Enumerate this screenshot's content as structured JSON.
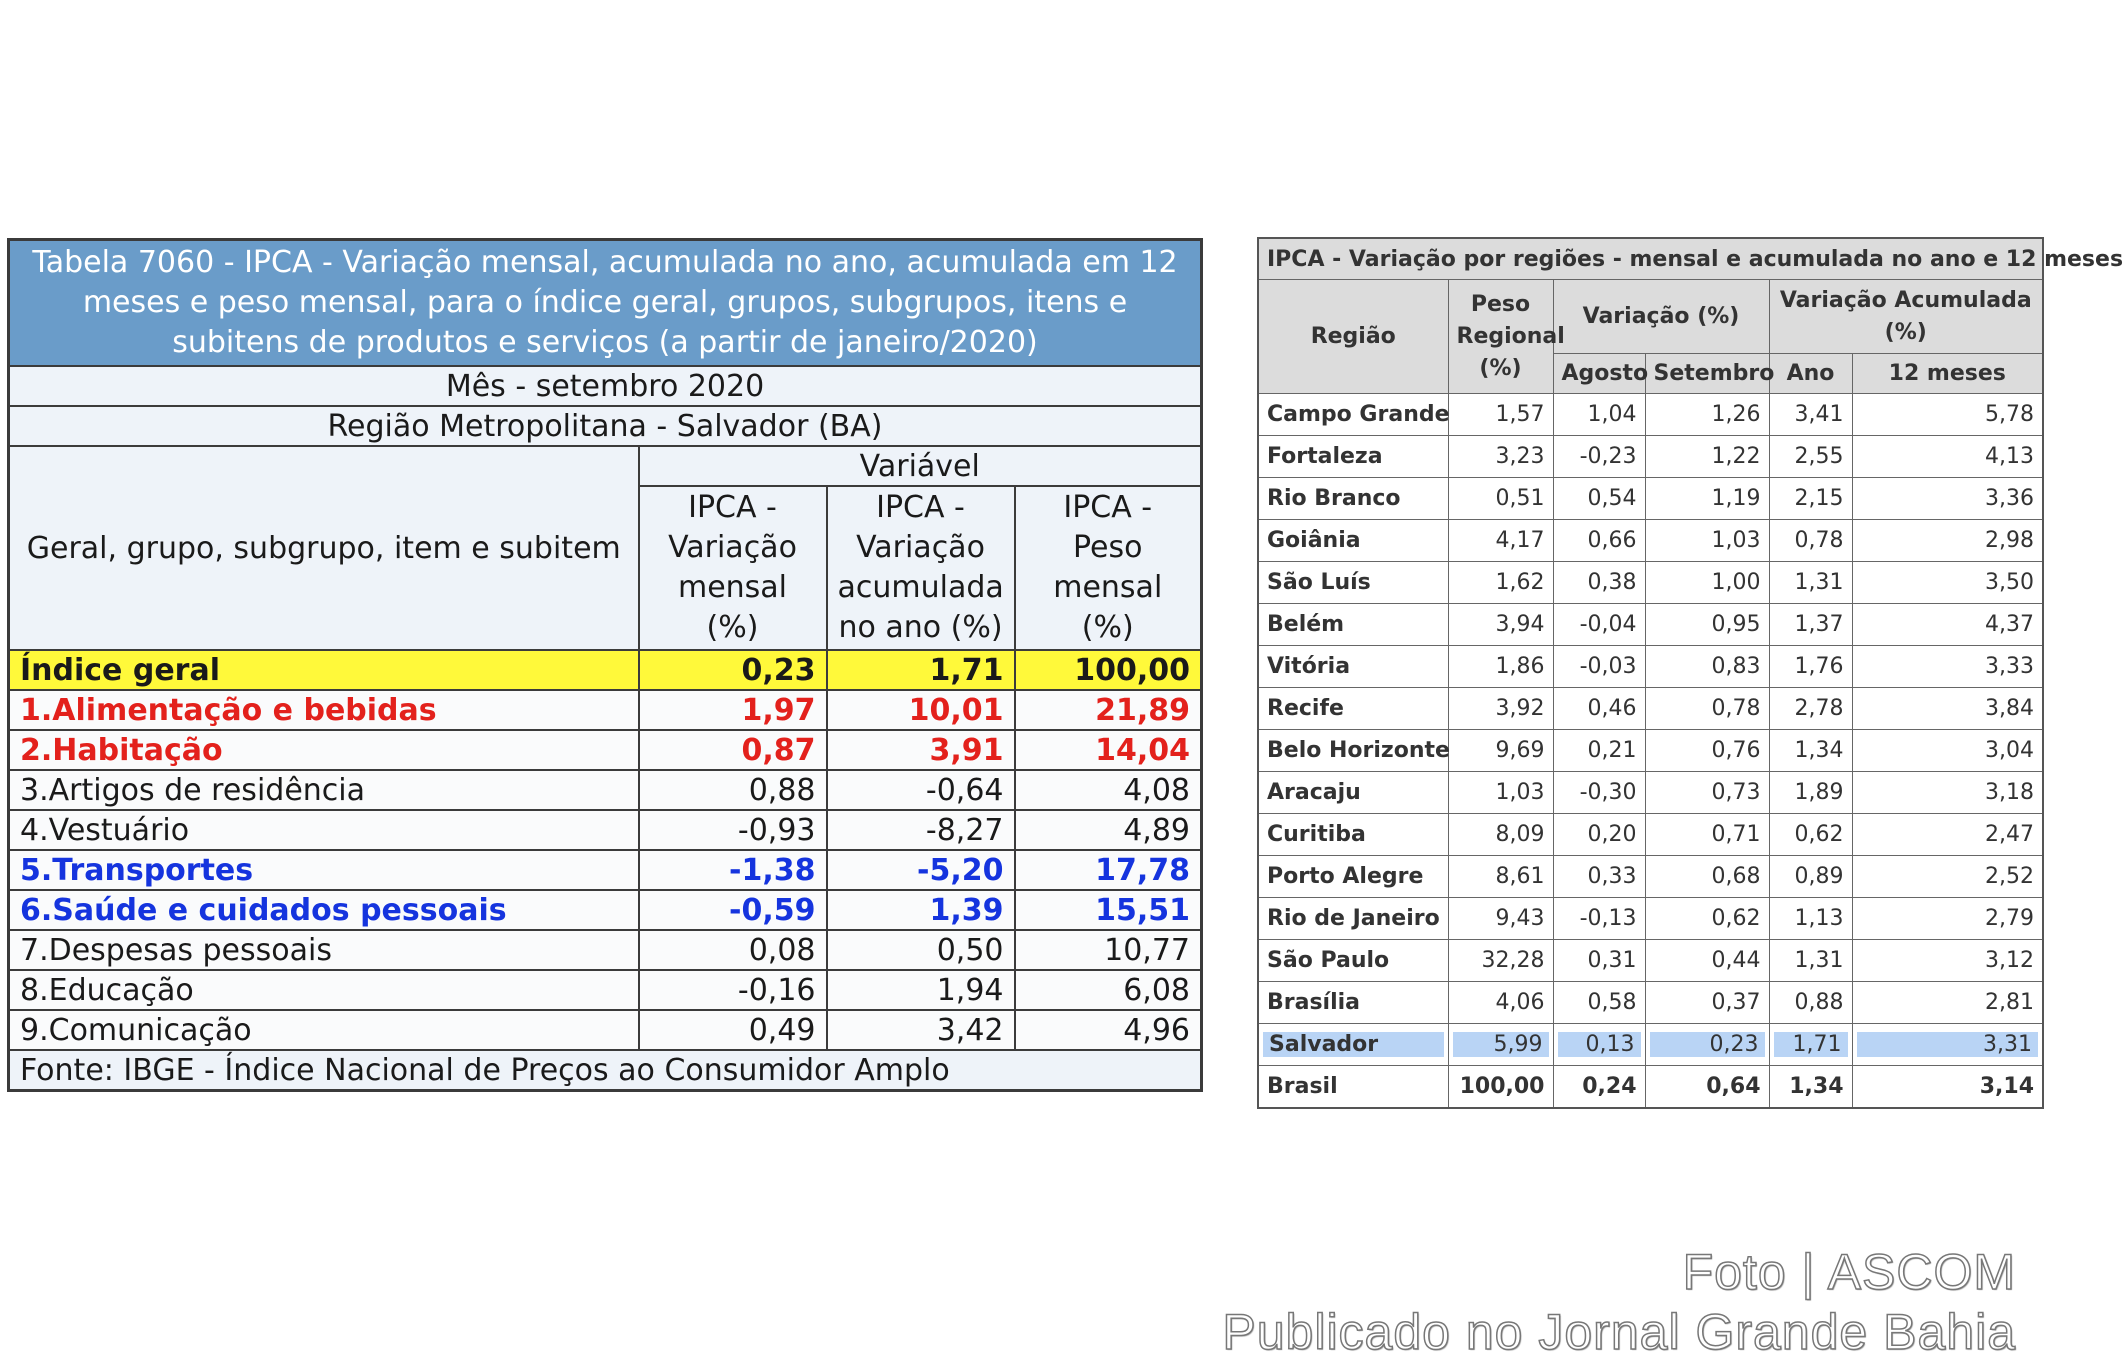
{
  "left_table": {
    "title": "Tabela 7060 - IPCA - Variação mensal, acumulada no ano, acumulada em 12 meses e peso mensal, para o índice geral, grupos, subgrupos, itens e subitens de produtos e serviços (a partir de janeiro/2020)",
    "month": "Mês - setembro 2020",
    "region": "Região Metropolitana - Salvador (BA)",
    "col_group": "Geral, grupo, subgrupo, item e subitem",
    "var_header": "Variável",
    "col1": "IPCA - Variação mensal (%)",
    "col2": "IPCA - Variação acumulada no ano (%)",
    "col3": "IPCA - Peso mensal (%)",
    "rows": [
      {
        "name": "Índice geral",
        "v1": "0,23",
        "v2": "1,71",
        "v3": "100,00"
      },
      {
        "name": "1.Alimentação e bebidas",
        "v1": "1,97",
        "v2": "10,01",
        "v3": "21,89"
      },
      {
        "name": "2.Habitação",
        "v1": "0,87",
        "v2": "3,91",
        "v3": "14,04"
      },
      {
        "name": "3.Artigos de residência",
        "v1": "0,88",
        "v2": "-0,64",
        "v3": "4,08"
      },
      {
        "name": "4.Vestuário",
        "v1": "-0,93",
        "v2": "-8,27",
        "v3": "4,89"
      },
      {
        "name": "5.Transportes",
        "v1": "-1,38",
        "v2": "-5,20",
        "v3": "17,78"
      },
      {
        "name": "6.Saúde e cuidados pessoais",
        "v1": "-0,59",
        "v2": "1,39",
        "v3": "15,51"
      },
      {
        "name": "7.Despesas pessoais",
        "v1": "0,08",
        "v2": "0,50",
        "v3": "10,77"
      },
      {
        "name": "8.Educação",
        "v1": "-0,16",
        "v2": "1,94",
        "v3": "6,08"
      },
      {
        "name": "9.Comunicação",
        "v1": "0,49",
        "v2": "3,42",
        "v3": "4,96"
      }
    ],
    "source": "Fonte: IBGE - Índice Nacional de Preços ao Consumidor Amplo",
    "colors": {
      "title_bg": "#6a9cc9",
      "geral_bg": "#fff93a",
      "red": "#e3211c",
      "blue": "#1534de"
    }
  },
  "right_table": {
    "title": "IPCA - Variação por regiões - mensal e acumulada no ano e 12 meses",
    "h_regiao": "Região",
    "h_peso": "Peso Regional (%)",
    "h_variacao": "Variação (%)",
    "h_acumulada": "Variação Acumulada (%)",
    "h_agosto": "Agosto",
    "h_setembro": "Setembro",
    "h_ano": "Ano",
    "h_12meses": "12 meses",
    "rows": [
      {
        "name": "Campo Grande",
        "peso": "1,57",
        "ago": "1,04",
        "set": "1,26",
        "ano": "3,41",
        "m12": "5,78"
      },
      {
        "name": "Fortaleza",
        "peso": "3,23",
        "ago": "-0,23",
        "set": "1,22",
        "ano": "2,55",
        "m12": "4,13"
      },
      {
        "name": "Rio Branco",
        "peso": "0,51",
        "ago": "0,54",
        "set": "1,19",
        "ano": "2,15",
        "m12": "3,36"
      },
      {
        "name": "Goiânia",
        "peso": "4,17",
        "ago": "0,66",
        "set": "1,03",
        "ano": "0,78",
        "m12": "2,98"
      },
      {
        "name": "São Luís",
        "peso": "1,62",
        "ago": "0,38",
        "set": "1,00",
        "ano": "1,31",
        "m12": "3,50"
      },
      {
        "name": "Belém",
        "peso": "3,94",
        "ago": "-0,04",
        "set": "0,95",
        "ano": "1,37",
        "m12": "4,37"
      },
      {
        "name": "Vitória",
        "peso": "1,86",
        "ago": "-0,03",
        "set": "0,83",
        "ano": "1,76",
        "m12": "3,33"
      },
      {
        "name": "Recife",
        "peso": "3,92",
        "ago": "0,46",
        "set": "0,78",
        "ano": "2,78",
        "m12": "3,84"
      },
      {
        "name": "Belo Horizonte",
        "peso": "9,69",
        "ago": "0,21",
        "set": "0,76",
        "ano": "1,34",
        "m12": "3,04"
      },
      {
        "name": "Aracaju",
        "peso": "1,03",
        "ago": "-0,30",
        "set": "0,73",
        "ano": "1,89",
        "m12": "3,18"
      },
      {
        "name": "Curitiba",
        "peso": "8,09",
        "ago": "0,20",
        "set": "0,71",
        "ano": "0,62",
        "m12": "2,47"
      },
      {
        "name": "Porto Alegre",
        "peso": "8,61",
        "ago": "0,33",
        "set": "0,68",
        "ano": "0,89",
        "m12": "2,52"
      },
      {
        "name": "Rio de Janeiro",
        "peso": "9,43",
        "ago": "-0,13",
        "set": "0,62",
        "ano": "1,13",
        "m12": "2,79"
      },
      {
        "name": "São Paulo",
        "peso": "32,28",
        "ago": "0,31",
        "set": "0,44",
        "ano": "1,31",
        "m12": "3,12"
      },
      {
        "name": "Brasília",
        "peso": "4,06",
        "ago": "0,58",
        "set": "0,37",
        "ano": "0,88",
        "m12": "2,81"
      },
      {
        "name": "Salvador",
        "peso": "5,99",
        "ago": "0,13",
        "set": "0,23",
        "ano": "1,71",
        "m12": "3,31"
      },
      {
        "name": "Brasil",
        "peso": "100,00",
        "ago": "0,24",
        "set": "0,64",
        "ano": "1,34",
        "m12": "3,14"
      }
    ],
    "highlight_color": "#b9d4f5"
  },
  "watermark": {
    "line1": "Foto | ASCOM",
    "line2": "Publicado no Jornal Grande Bahia"
  }
}
